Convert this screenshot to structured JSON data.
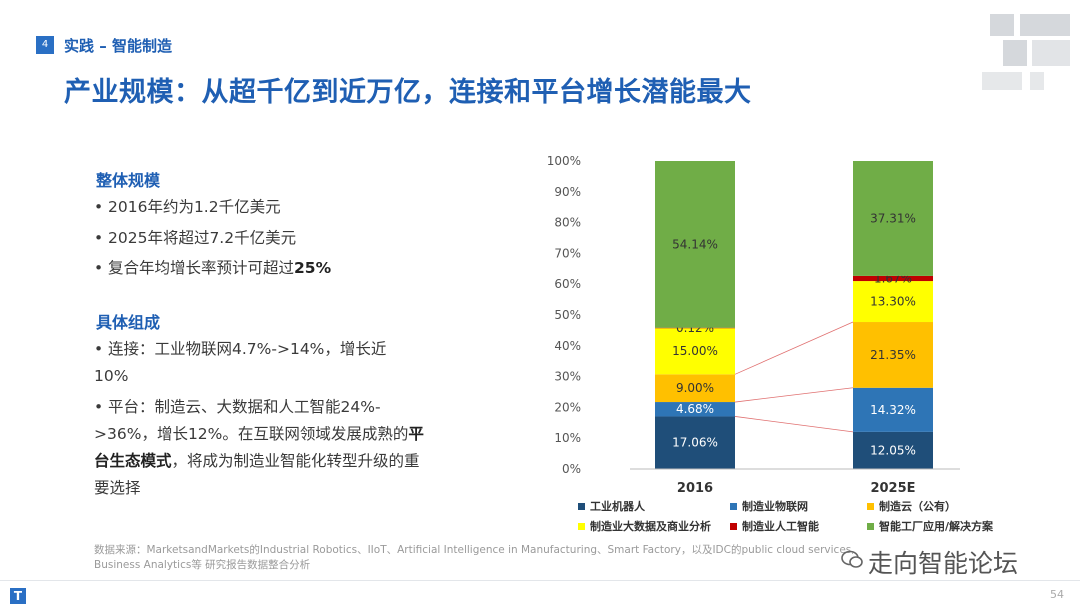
{
  "header": {
    "section_number": "4",
    "section_title": "实践 – 智能制造",
    "main_title": "产业规模：从超千亿到近万亿，连接和平台增长潜能最大"
  },
  "left": {
    "block1_title": "整体规模",
    "block1_items": [
      "2016年约为1.2千亿美元",
      "2025年将超过7.2千亿美元"
    ],
    "block1_item3_prefix": "复合年均增长率预计可超过",
    "block1_item3_bold": "25%",
    "block2_title": "具体组成",
    "block2_item1": "连接：工业物联网4.7%->14%，增长近10%",
    "block2_item2_prefix": "平台：制造云、大数据和人工智能24%->36%，增长12%。在互联网领域发展成熟的",
    "block2_item2_bold": "平台生态模式",
    "block2_item2_suffix": "，将成为制造业智能化转型升级的重要选择",
    "bullet_char": "•"
  },
  "footer": {
    "source_line1": "数据来源：MarketsandMarkets的Industrial Robotics、IIoT、Artificial Intelligence in Manufacturing、Smart Factory，以及IDC的public cloud services,",
    "source_line2": "Business Analytics等 研究报告数据整合分析",
    "watermark": "走向智能论坛",
    "page_number": "54",
    "logo_char": "T"
  },
  "colors": {
    "accent": "#1f5fb3",
    "series": [
      "#1f4e79",
      "#2e75b6",
      "#ffc000",
      "#ffff00",
      "#c00000",
      "#70ad47"
    ]
  },
  "chart_data": {
    "type": "bar",
    "stacked": true,
    "categories": [
      "2016",
      "2025E"
    ],
    "ylim": [
      0,
      100
    ],
    "yticks": [
      "0%",
      "10%",
      "20%",
      "30%",
      "40%",
      "50%",
      "60%",
      "70%",
      "80%",
      "90%",
      "100%"
    ],
    "series": [
      {
        "name": "工业机器人",
        "values": [
          17.06,
          12.05
        ],
        "labels": [
          "17.06%",
          "12.05%"
        ]
      },
      {
        "name": "制造业物联网",
        "values": [
          4.68,
          14.32
        ],
        "labels": [
          "4.68%",
          "14.32%"
        ]
      },
      {
        "name": "制造云（公有）",
        "values": [
          9.0,
          21.35
        ],
        "labels": [
          "9.00%",
          "21.35%"
        ]
      },
      {
        "name": "制造业大数据及商业分析",
        "values": [
          15.0,
          13.3
        ],
        "labels": [
          "15.00%",
          "13.30%"
        ]
      },
      {
        "name": "制造业人工智能",
        "values": [
          0.12,
          1.67
        ],
        "labels": [
          "0.12%",
          "1.67%"
        ]
      },
      {
        "name": "智能工厂应用/解决方案",
        "values": [
          54.14,
          37.31
        ],
        "labels": [
          "54.14%",
          "37.31%"
        ]
      }
    ],
    "legend_position": "bottom"
  }
}
